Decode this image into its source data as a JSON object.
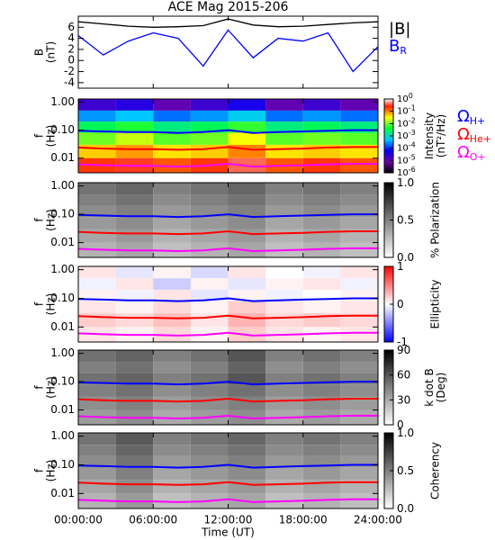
{
  "chart_data": [
    {
      "type": "line",
      "title": "ACE Mag 2015-206",
      "ylabel": [
        "B",
        "(nT)"
      ],
      "ylim": [
        -5,
        8
      ],
      "yticks": [
        -4,
        -2,
        0,
        2,
        4,
        6
      ],
      "x": [
        0,
        2,
        4,
        6,
        8,
        10,
        12,
        14,
        16,
        18,
        20,
        22,
        24
      ],
      "series": [
        {
          "name": "|B|",
          "color": "#000000",
          "values": [
            7.0,
            6.6,
            6.2,
            6.0,
            6.1,
            6.3,
            7.5,
            6.4,
            6.1,
            6.2,
            6.5,
            6.8,
            7.0
          ]
        },
        {
          "name": "B",
          "subscript": "R",
          "color": "#0000ff",
          "values": [
            4.5,
            1.0,
            3.5,
            5.0,
            4.0,
            -1.0,
            5.5,
            0.5,
            4.0,
            3.5,
            5.0,
            -2.0,
            2.5
          ]
        }
      ]
    },
    {
      "type": "heatmap",
      "ylabel": [
        "f",
        "(Hz)"
      ],
      "ylog": true,
      "ylim": [
        0.003,
        1.3
      ],
      "yticks": [
        {
          "value": 1,
          "label": "1.00"
        },
        {
          "value": 0.1,
          "label": "0.10"
        },
        {
          "value": 0.01,
          "label": "0.01"
        }
      ],
      "z_x": [
        0,
        3,
        6,
        9,
        12,
        15,
        18,
        21,
        24
      ],
      "z_y": [
        1.3,
        0.5,
        0.2,
        0.08,
        0.03,
        0.01,
        0.003
      ],
      "z": [
        [
          2e-05,
          3e-05,
          1e-05,
          2e-05,
          4e-05,
          1e-05,
          2e-05,
          1e-05
        ],
        [
          0.0003,
          0.0005,
          0.0002,
          0.0003,
          0.0006,
          0.0002,
          0.0003,
          0.0002
        ],
        [
          0.003,
          0.005,
          0.002,
          0.003,
          0.006,
          0.002,
          0.003,
          0.002
        ],
        [
          0.01,
          0.02,
          0.008,
          0.01,
          0.03,
          0.008,
          0.01,
          0.008
        ],
        [
          0.05,
          0.08,
          0.04,
          0.05,
          0.1,
          0.04,
          0.05,
          0.04
        ],
        [
          0.2,
          0.3,
          0.15,
          0.2,
          0.4,
          0.15,
          0.2,
          0.15
        ]
      ],
      "colormap": "rainbow",
      "clog": true,
      "clim": [
        1e-06,
        1
      ],
      "cticks": [
        {
          "value": 1,
          "label": "10",
          "exp": "0"
        },
        {
          "value": 0.1,
          "label": "10",
          "exp": "-1"
        },
        {
          "value": 0.01,
          "label": "10",
          "exp": "-2"
        },
        {
          "value": 0.001,
          "label": "10",
          "exp": "-3"
        },
        {
          "value": 0.0001,
          "label": "10",
          "exp": "-4"
        },
        {
          "value": 1e-05,
          "label": "10",
          "exp": "-5"
        },
        {
          "value": 1e-06,
          "label": "10",
          "exp": "-6"
        }
      ],
      "clabel": [
        "Intensity",
        "(nT²/Hz)"
      ],
      "x": [
        0,
        2,
        4,
        6,
        8,
        10,
        12,
        14,
        16,
        18,
        20,
        22,
        24
      ],
      "series": [
        {
          "name": "Ω",
          "subscript": "H+",
          "color": "#0000ff",
          "values": [
            0.095,
            0.09,
            0.085,
            0.085,
            0.08,
            0.085,
            0.1,
            0.08,
            0.085,
            0.09,
            0.095,
            0.1,
            0.1
          ]
        },
        {
          "name": "Ω",
          "subscript": "He+",
          "color": "#ff0000",
          "values": [
            0.024,
            0.022,
            0.021,
            0.021,
            0.02,
            0.021,
            0.025,
            0.02,
            0.021,
            0.022,
            0.024,
            0.025,
            0.025
          ]
        },
        {
          "name": "Ω",
          "subscript": "O+",
          "color": "#ff00ff",
          "values": [
            0.006,
            0.0056,
            0.0053,
            0.0053,
            0.005,
            0.0053,
            0.0063,
            0.005,
            0.0053,
            0.0056,
            0.006,
            0.0063,
            0.0063
          ]
        }
      ]
    },
    {
      "type": "heatmap",
      "ylabel": [
        "f",
        "(Hz)"
      ],
      "ylog": true,
      "ylim": [
        0.003,
        1.3
      ],
      "yticks": [
        {
          "value": 1,
          "label": "1.00"
        },
        {
          "value": 0.1,
          "label": "0.10"
        },
        {
          "value": 0.01,
          "label": "0.01"
        }
      ],
      "z_x": [
        0,
        3,
        6,
        9,
        12,
        15,
        18,
        21,
        24
      ],
      "z_y": [
        1.3,
        0.5,
        0.2,
        0.08,
        0.03,
        0.01,
        0.003
      ],
      "z": [
        [
          0.55,
          0.6,
          0.5,
          0.55,
          0.6,
          0.5,
          0.55,
          0.5
        ],
        [
          0.5,
          0.55,
          0.45,
          0.5,
          0.55,
          0.45,
          0.5,
          0.45
        ],
        [
          0.45,
          0.5,
          0.4,
          0.45,
          0.5,
          0.4,
          0.45,
          0.4
        ],
        [
          0.4,
          0.45,
          0.35,
          0.4,
          0.45,
          0.35,
          0.4,
          0.35
        ],
        [
          0.35,
          0.4,
          0.3,
          0.35,
          0.4,
          0.3,
          0.35,
          0.3
        ],
        [
          0.3,
          0.35,
          0.25,
          0.3,
          0.35,
          0.25,
          0.3,
          0.25
        ]
      ],
      "colormap": "gray",
      "clim": [
        0,
        1
      ],
      "cticks": [
        {
          "value": 0,
          "label": "0.0"
        },
        {
          "value": 0.5,
          "label": "0.5"
        },
        {
          "value": 1,
          "label": "1.0"
        }
      ],
      "clabel": [
        "% Polarization"
      ]
    },
    {
      "type": "heatmap",
      "ylabel": [
        "f",
        "(Hz)"
      ],
      "ylog": true,
      "ylim": [
        0.003,
        1.3
      ],
      "yticks": [
        {
          "value": 1,
          "label": "1.00"
        },
        {
          "value": 0.1,
          "label": "0.10"
        },
        {
          "value": 0.01,
          "label": "0.01"
        }
      ],
      "z_x": [
        0,
        3,
        6,
        9,
        12,
        15,
        18,
        21,
        24
      ],
      "z_y": [
        1.3,
        0.5,
        0.2,
        0.08,
        0.03,
        0.01,
        0.003
      ],
      "z": [
        [
          0.1,
          -0.1,
          0.05,
          -0.15,
          0.1,
          0,
          -0.05,
          0.1
        ],
        [
          -0.05,
          0.1,
          -0.2,
          0.05,
          -0.1,
          0.05,
          0.1,
          -0.05
        ],
        [
          0.05,
          -0.05,
          0.1,
          -0.1,
          0.05,
          -0.05,
          0,
          0.05
        ],
        [
          0.1,
          0.05,
          0.15,
          0.05,
          0.2,
          0.1,
          0.05,
          0.1
        ],
        [
          0.2,
          0.15,
          0.25,
          0.1,
          0.3,
          0.15,
          0.2,
          0.15
        ],
        [
          0.1,
          0.05,
          0.15,
          0.05,
          0.2,
          0.1,
          0.05,
          0.1
        ]
      ],
      "colormap": "bwr",
      "clim": [
        -1,
        1
      ],
      "cticks": [
        -1,
        0,
        1
      ],
      "clabel": [
        "Ellipticity"
      ]
    },
    {
      "type": "heatmap",
      "ylabel": [
        "f",
        "(Hz)"
      ],
      "ylog": true,
      "ylim": [
        0.003,
        1.3
      ],
      "yticks": [
        {
          "value": 1,
          "label": "1.00"
        },
        {
          "value": 0.1,
          "label": "0.10"
        },
        {
          "value": 0.01,
          "label": "0.01"
        }
      ],
      "z_x": [
        0,
        3,
        6,
        9,
        12,
        15,
        18,
        21,
        24
      ],
      "z_y": [
        1.3,
        0.5,
        0.2,
        0.08,
        0.03,
        0.01,
        0.003
      ],
      "z": [
        [
          50,
          55,
          45,
          50,
          60,
          45,
          50,
          45
        ],
        [
          45,
          50,
          40,
          45,
          55,
          40,
          45,
          40
        ],
        [
          50,
          55,
          45,
          50,
          60,
          45,
          50,
          45
        ],
        [
          45,
          50,
          40,
          45,
          50,
          40,
          45,
          40
        ],
        [
          40,
          45,
          35,
          40,
          45,
          35,
          40,
          35
        ],
        [
          35,
          40,
          30,
          35,
          40,
          30,
          35,
          30
        ]
      ],
      "colormap": "gray",
      "clim": [
        0,
        90
      ],
      "cticks": [
        0,
        30,
        60,
        90
      ],
      "clabel": [
        "k dot B",
        "(Deg)"
      ]
    },
    {
      "type": "heatmap",
      "ylabel": [
        "f",
        "(Hz)"
      ],
      "ylog": true,
      "ylim": [
        0.003,
        1.3
      ],
      "yticks": [
        {
          "value": 1,
          "label": "1.00"
        },
        {
          "value": 0.1,
          "label": "0.10"
        },
        {
          "value": 0.01,
          "label": "0.01"
        }
      ],
      "z_x": [
        0,
        3,
        6,
        9,
        12,
        15,
        18,
        21,
        24
      ],
      "z_y": [
        1.3,
        0.5,
        0.2,
        0.08,
        0.03,
        0.01,
        0.003
      ],
      "z": [
        [
          0.55,
          0.65,
          0.5,
          0.55,
          0.6,
          0.5,
          0.55,
          0.5
        ],
        [
          0.5,
          0.6,
          0.45,
          0.5,
          0.55,
          0.45,
          0.5,
          0.45
        ],
        [
          0.45,
          0.55,
          0.4,
          0.45,
          0.5,
          0.4,
          0.45,
          0.4
        ],
        [
          0.4,
          0.5,
          0.35,
          0.4,
          0.45,
          0.35,
          0.4,
          0.35
        ],
        [
          0.35,
          0.45,
          0.3,
          0.35,
          0.4,
          0.3,
          0.35,
          0.3
        ],
        [
          0.3,
          0.4,
          0.25,
          0.3,
          0.35,
          0.25,
          0.3,
          0.25
        ]
      ],
      "colormap": "gray",
      "clim": [
        0,
        1
      ],
      "cticks": [
        {
          "value": 0,
          "label": "0.0"
        },
        {
          "value": 0.5,
          "label": "0.5"
        },
        {
          "value": 1,
          "label": "1.0"
        }
      ],
      "clabel": [
        "Coherency"
      ],
      "xlim": [
        0,
        24
      ],
      "xticks": [
        {
          "value": 0,
          "label": "00:00:00"
        },
        {
          "value": 6,
          "label": "06:00:00"
        },
        {
          "value": 12,
          "label": "12:00:00"
        },
        {
          "value": 18,
          "label": "18:00:00"
        },
        {
          "value": 24,
          "label": "24:00:00"
        }
      ],
      "xlabel": "Time (UT)"
    }
  ]
}
